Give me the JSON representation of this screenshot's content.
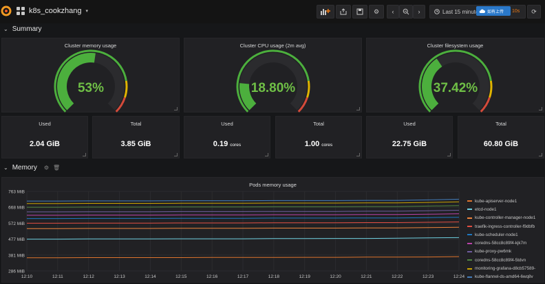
{
  "header": {
    "dashboard_title": "k8s_cookzhang",
    "time_range": "Last 15 minutes",
    "overlay_badge": "如有上传",
    "refresh_label": "10s"
  },
  "rows": {
    "summary": {
      "title": "Summary"
    },
    "memory": {
      "title": "Memory"
    }
  },
  "gauges": [
    {
      "id": "memory",
      "title": "Cluster memory usage",
      "display": "53%",
      "value": 53,
      "max": 100
    },
    {
      "id": "cpu",
      "title": "Cluster CPU usage (2m avg)",
      "display": "18.80%",
      "value": 18.8,
      "max": 100
    },
    {
      "id": "fs",
      "title": "Cluster filesystem usage",
      "display": "37.42%",
      "value": 37.42,
      "max": 100
    }
  ],
  "stats": [
    {
      "title": "Used",
      "value": "2.04 GiB",
      "unit": ""
    },
    {
      "title": "Total",
      "value": "3.85 GiB",
      "unit": ""
    },
    {
      "title": "Used",
      "value": "0.19",
      "unit": "cores"
    },
    {
      "title": "Total",
      "value": "1.00",
      "unit": "cores"
    },
    {
      "title": "Used",
      "value": "22.75 GiB",
      "unit": ""
    },
    {
      "title": "Total",
      "value": "60.80 GiB",
      "unit": ""
    }
  ],
  "colors": {
    "gauge_fill": "#4caf3d",
    "gauge_track": "#2b2b2e",
    "gauge_threshold_mid": "#e0b400",
    "gauge_threshold_high": "#d44a3a",
    "gauge_text": "#6fbf46"
  },
  "chart_data": {
    "type": "line",
    "title": "Pods memory usage",
    "x": [
      "12:10",
      "12:11",
      "12:12",
      "12:13",
      "12:14",
      "12:15",
      "12:16",
      "12:17",
      "12:18",
      "12:19",
      "12:20",
      "12:21",
      "12:22",
      "12:23",
      "12:24"
    ],
    "y_ticks": [
      "286 MiB",
      "381 MiB",
      "477 MiB",
      "572 MiB",
      "668 MiB",
      "763 MiB"
    ],
    "ylim": [
      286,
      763
    ],
    "series": [
      {
        "name": "kube-apiserver-node1",
        "color": "#e0752d",
        "values": [
          365,
          365,
          366,
          366,
          366,
          366,
          367,
          367,
          367,
          368,
          368,
          369,
          369,
          370,
          372
        ]
      },
      {
        "name": "etcd-node1",
        "color": "#6ed0e0",
        "values": [
          477,
          477,
          478,
          478,
          478,
          479,
          479,
          479,
          480,
          480,
          481,
          481,
          482,
          484,
          486
        ]
      },
      {
        "name": "kube-controller-manager-node1",
        "color": "#ef843c",
        "values": [
          540,
          540,
          541,
          541,
          541,
          542,
          542,
          542,
          543,
          543,
          543,
          544,
          544,
          546,
          548
        ]
      },
      {
        "name": "traefik-ingress-controller-f9dbfb",
        "color": "#e24d42",
        "values": [
          572,
          572,
          573,
          573,
          573,
          574,
          574,
          574,
          575,
          575,
          575,
          576,
          576,
          578,
          580
        ]
      },
      {
        "name": "kube-scheduler-node1",
        "color": "#1f78c1",
        "values": [
          600,
          600,
          601,
          601,
          601,
          602,
          602,
          602,
          603,
          603,
          603,
          604,
          604,
          606,
          608
        ]
      },
      {
        "name": "coredns-58cc8c89f4-kjk7m",
        "color": "#ba43a9",
        "values": [
          620,
          620,
          621,
          621,
          621,
          622,
          622,
          622,
          623,
          623,
          623,
          624,
          624,
          626,
          629
        ]
      },
      {
        "name": "kube-proxy-pw6mk",
        "color": "#705da0",
        "values": [
          640,
          640,
          641,
          641,
          641,
          642,
          642,
          642,
          643,
          643,
          643,
          644,
          644,
          647,
          650
        ]
      },
      {
        "name": "coredns-58cc8c89f4-5tdvn",
        "color": "#508642",
        "values": [
          668,
          668,
          669,
          669,
          669,
          670,
          670,
          670,
          671,
          671,
          671,
          672,
          672,
          675,
          678
        ]
      },
      {
        "name": "monitoring-grafana-d8cb57589-",
        "color": "#cca300",
        "values": [
          690,
          690,
          691,
          691,
          691,
          692,
          692,
          692,
          693,
          693,
          693,
          694,
          694,
          697,
          700
        ]
      },
      {
        "name": "kube-flannel-ds-amd64-6wq8v",
        "color": "#447ebc",
        "values": [
          705,
          705,
          706,
          706,
          706,
          707,
          707,
          707,
          708,
          708,
          708,
          709,
          709,
          712,
          716
        ]
      }
    ]
  }
}
